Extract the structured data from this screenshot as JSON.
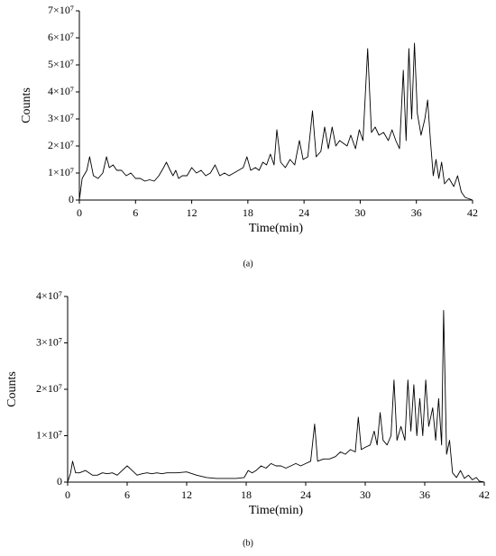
{
  "chart_data": [
    {
      "type": "line",
      "caption": "(a)",
      "xlabel": "Time(min)",
      "ylabel": "Counts",
      "color": "#000000",
      "x": [
        0,
        0.3,
        0.8,
        1.1,
        1.5,
        2,
        2.5,
        2.9,
        3.2,
        3.6,
        4,
        4.5,
        5,
        5.5,
        6,
        6.5,
        7,
        7.5,
        8,
        8.5,
        9,
        9.3,
        9.7,
        10,
        10.3,
        10.6,
        11,
        11.5,
        12,
        12.5,
        13,
        13.5,
        14,
        14.5,
        15,
        15.5,
        16,
        16.5,
        17,
        17.5,
        17.9,
        18.3,
        18.8,
        19.2,
        19.6,
        20,
        20.4,
        20.8,
        21.1,
        21.5,
        22,
        22.5,
        23,
        23.5,
        23.9,
        24.4,
        24.9,
        25.3,
        25.8,
        26.2,
        26.6,
        27,
        27.4,
        27.8,
        28.2,
        28.6,
        29,
        29.5,
        29.9,
        30.3,
        30.8,
        31.2,
        31.6,
        32,
        32.5,
        33,
        33.4,
        33.8,
        34.2,
        34.6,
        34.9,
        35.2,
        35.5,
        35.8,
        36.1,
        36.5,
        36.9,
        37.2,
        37.5,
        37.8,
        38.1,
        38.4,
        38.7,
        39,
        39.5,
        40,
        40.4,
        40.8,
        41.2,
        42
      ],
      "values": [
        0,
        8000000.0,
        11000000.0,
        16000000.0,
        9000000.0,
        8000000.0,
        10000000.0,
        16000000.0,
        12000000.0,
        13000000.0,
        11000000.0,
        11000000.0,
        9000000.0,
        10000000.0,
        8000000.0,
        8000000.0,
        7000000.0,
        7500000.0,
        7000000.0,
        9000000.0,
        12000000.0,
        14000000.0,
        11000000.0,
        9000000.0,
        11000000.0,
        8000000.0,
        9000000.0,
        9000000.0,
        12000000.0,
        10000000.0,
        11000000.0,
        9000000.0,
        10000000.0,
        13000000.0,
        9000000.0,
        10000000.0,
        9000000.0,
        10000000.0,
        11000000.0,
        12000000.0,
        16000000.0,
        11000000.0,
        12000000.0,
        11000000.0,
        14000000.0,
        13000000.0,
        17000000.0,
        13000000.0,
        26000000.0,
        14000000.0,
        12000000.0,
        15000000.0,
        13000000.0,
        22000000.0,
        15000000.0,
        16000000.0,
        33000000.0,
        16000000.0,
        18000000.0,
        27000000.0,
        19000000.0,
        27000000.0,
        20000000.0,
        22000000.0,
        21000000.0,
        20000000.0,
        24000000.0,
        19000000.0,
        26000000.0,
        22000000.0,
        56000000.0,
        25000000.0,
        27000000.0,
        24000000.0,
        25000000.0,
        22000000.0,
        26000000.0,
        22000000.0,
        19000000.0,
        48000000.0,
        22000000.0,
        56000000.0,
        30000000.0,
        58000000.0,
        32000000.0,
        24000000.0,
        30000000.0,
        37000000.0,
        22000000.0,
        9000000.0,
        15000000.0,
        8000000.0,
        14000000.0,
        6000000.0,
        8000000.0,
        5000000.0,
        9000000.0,
        3000000.0,
        1000000.0,
        0
      ],
      "xlim": [
        0,
        42
      ],
      "xticks": [
        0,
        6,
        12,
        18,
        24,
        30,
        36,
        42
      ],
      "ylim": [
        0,
        70000000
      ],
      "yticks": [
        0,
        {
          "value": 10000000,
          "label": "1×10⁷"
        },
        {
          "value": 20000000,
          "label": "2×10⁷"
        },
        {
          "value": 30000000,
          "label": "3×10⁷"
        },
        {
          "value": 40000000,
          "label": "4×10⁷"
        },
        {
          "value": 50000000,
          "label": "5×10⁷"
        },
        {
          "value": 60000000,
          "label": "6×10⁷"
        },
        {
          "value": 70000000,
          "label": "7×10⁷"
        }
      ]
    },
    {
      "type": "line",
      "caption": "(b)",
      "xlabel": "Time(min)",
      "ylabel": "Counts",
      "color": "#000000",
      "x": [
        0,
        0.3,
        0.5,
        0.8,
        1.2,
        1.8,
        2.5,
        3,
        3.5,
        4,
        4.5,
        5,
        5.5,
        6,
        6.5,
        7,
        7.5,
        8,
        8.5,
        9,
        9.5,
        10,
        11,
        12,
        13,
        14,
        15,
        16,
        17,
        17.8,
        18.2,
        18.6,
        19,
        19.5,
        20,
        20.5,
        21,
        21.5,
        22,
        22.5,
        23,
        23.5,
        24,
        24.5,
        24.9,
        25.2,
        25.8,
        26.4,
        27,
        27.5,
        28,
        28.5,
        29,
        29.3,
        29.6,
        30,
        30.5,
        30.9,
        31.2,
        31.5,
        31.8,
        32.2,
        32.6,
        32.9,
        33.2,
        33.6,
        34,
        34.3,
        34.6,
        34.9,
        35.2,
        35.5,
        35.8,
        36.1,
        36.4,
        36.8,
        37.1,
        37.4,
        37.7,
        37.9,
        38.2,
        38.5,
        38.8,
        39.2,
        39.6,
        40,
        40.4,
        40.8,
        41.2,
        41.5,
        42
      ],
      "values": [
        0,
        2000000.0,
        4500000.0,
        2000000.0,
        2000000.0,
        2500000.0,
        1500000.0,
        1500000.0,
        2000000.0,
        1800000.0,
        2000000.0,
        1500000.0,
        2500000.0,
        3500000.0,
        2500000.0,
        1500000.0,
        1800000.0,
        2000000.0,
        1800000.0,
        2000000.0,
        1800000.0,
        2000000.0,
        2000000.0,
        2200000.0,
        1500000.0,
        1000000.0,
        800000.0,
        800000.0,
        800000.0,
        1000000.0,
        2500000.0,
        2000000.0,
        2500000.0,
        3500000.0,
        3000000.0,
        4000000.0,
        3500000.0,
        3500000.0,
        3000000.0,
        3500000.0,
        4000000.0,
        3500000.0,
        4000000.0,
        4500000.0,
        12500000.0,
        4500000.0,
        5000000.0,
        5000000.0,
        5500000.0,
        6500000.0,
        6000000.0,
        7000000.0,
        6500000.0,
        14000000.0,
        7000000.0,
        7500000.0,
        8000000.0,
        11000000.0,
        8000000.0,
        15000000.0,
        9000000.0,
        8000000.0,
        10000000.0,
        22000000.0,
        9000000.0,
        12000000.0,
        9000000.0,
        22000000.0,
        11000000.0,
        21000000.0,
        10000000.0,
        18000000.0,
        10000000.0,
        22000000.0,
        12000000.0,
        16000000.0,
        9000000.0,
        18000000.0,
        8000000.0,
        37000000.0,
        6000000.0,
        9000000.0,
        2000000.0,
        1000000.0,
        2500000.0,
        800000.0,
        1500000.0,
        500000.0,
        1000000.0,
        200000.0,
        0
      ],
      "xlim": [
        0,
        42
      ],
      "xticks": [
        0,
        6,
        12,
        18,
        24,
        30,
        36,
        42
      ],
      "ylim": [
        0,
        40000000
      ],
      "yticks": [
        0,
        {
          "value": 10000000,
          "label": "1×10⁷"
        },
        {
          "value": 20000000,
          "label": "2×10⁷"
        },
        {
          "value": 30000000,
          "label": "3×10⁷"
        },
        {
          "value": 40000000,
          "label": "4×10⁷"
        }
      ]
    }
  ]
}
